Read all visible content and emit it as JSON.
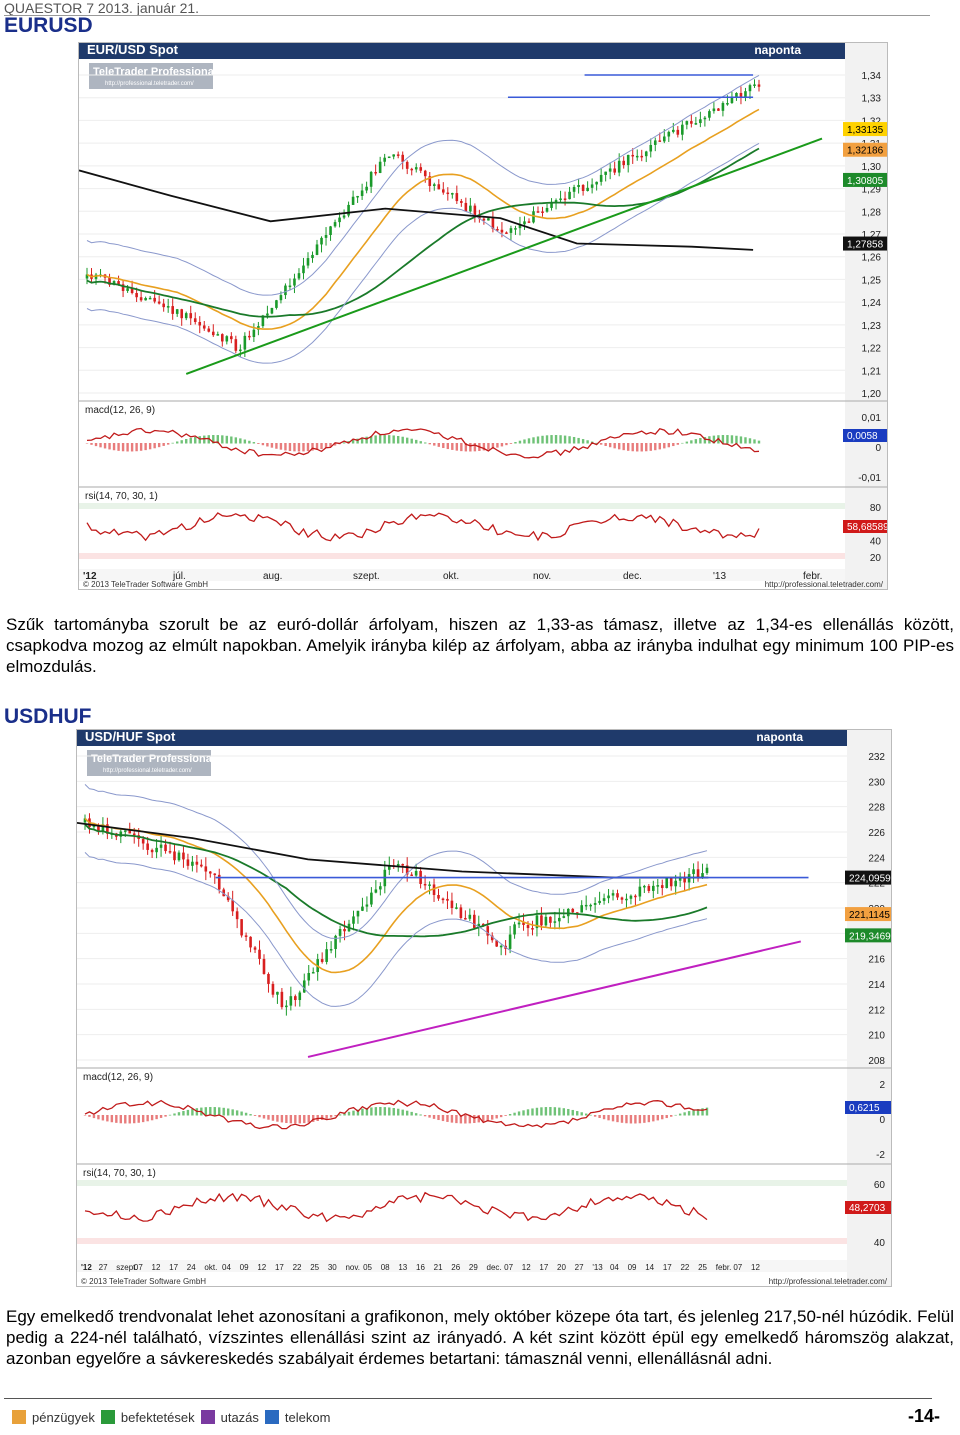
{
  "header": {
    "text": "QUAESTOR 7   2013. január 21."
  },
  "eurusd": {
    "title": "EURUSD",
    "chart": {
      "instrument": "EUR/USD Spot",
      "period": "naponta",
      "logo": "TeleTrader Professional",
      "logo_url": "http://professional.teletrader.com/",
      "price_ticks": [
        "1,34",
        "1,33",
        "1,32",
        "1,31",
        "1,30",
        "1,29",
        "1,28",
        "1,27",
        "1,26",
        "1,25",
        "1,24",
        "1,23",
        "1,22",
        "1,21",
        "1,20"
      ],
      "price_tags": [
        {
          "label": "1,33135",
          "color": "#ffd200",
          "text_color": "#000"
        },
        {
          "label": "1,32186",
          "color": "#f2a040",
          "text_color": "#000"
        },
        {
          "label": "1,30805",
          "color": "#1d8a2a",
          "text_color": "#fff"
        },
        {
          "label": "1,27858",
          "color": "#111111",
          "text_color": "#fff"
        }
      ],
      "macd_label": "macd(12, 26, 9)",
      "macd_ticks": [
        "0,01",
        "0",
        "-0,01"
      ],
      "macd_tag": "0,0058",
      "rsi_label": "rsi(14, 70, 30, 1)",
      "rsi_ticks": [
        "80",
        "60",
        "40",
        "20"
      ],
      "rsi_tag": "58,68589",
      "date_labels": [
        "'12",
        "júl.",
        "aug.",
        "szept.",
        "okt.",
        "nov.",
        "dec.",
        "'13",
        "febr."
      ],
      "copyright": "© 2013 TeleTrader Software GmbH",
      "url": "http://professional.teletrader.com/"
    },
    "text": "Szűk tartományba szorult be az euró-dollár árfolyam, hiszen az 1,33-as támasz, illetve az 1,34-es ellenállás között, csapkodva mozog az elmúlt napokban. Amelyik irányba kilép az árfolyam, abba az irányba indulhat egy minimum 100 PIP-es elmozdulás."
  },
  "usdhuf": {
    "title": "USDHUF",
    "chart": {
      "instrument": "USD/HUF Spot",
      "period": "naponta",
      "logo": "TeleTrader Professional",
      "logo_url": "http://professional.teletrader.com/",
      "price_ticks": [
        "232",
        "230",
        "228",
        "226",
        "224",
        "222",
        "220",
        "218",
        "216",
        "214",
        "212",
        "210",
        "208"
      ],
      "price_tags": [
        {
          "label": "224,0959",
          "color": "#111111",
          "text_color": "#fff"
        },
        {
          "label": "221,1145",
          "color": "#f2a040",
          "text_color": "#000"
        },
        {
          "label": "219,3469",
          "color": "#1d8a2a",
          "text_color": "#fff"
        }
      ],
      "macd_label": "macd(12, 26, 9)",
      "macd_ticks": [
        "2",
        "0",
        "-2"
      ],
      "macd_tag": "0,6215",
      "rsi_label": "rsi(14, 70, 30, 1)",
      "rsi_ticks": [
        "60",
        "40"
      ],
      "rsi_tag": "48,2703",
      "date_labels": [
        "'12",
        "27",
        "szept.",
        "07",
        "12",
        "17",
        "24",
        "okt.",
        "04",
        "09",
        "12",
        "17",
        "22",
        "25",
        "30",
        "nov.",
        "05",
        "08",
        "13",
        "16",
        "21",
        "26",
        "29",
        "dec.",
        "07",
        "12",
        "17",
        "20",
        "27",
        "'13",
        "04",
        "09",
        "14",
        "17",
        "22",
        "25",
        "febr.",
        "07",
        "12"
      ],
      "copyright": "© 2013 TeleTrader Software GmbH",
      "url": "http://professional.teletrader.com/"
    },
    "text": "Egy emelkedő trendvonalat lehet azonosítani a grafikonon, mely október közepe óta tart, és jelenleg 217,50-nél húzódik. Felül pedig a 224-nél található, vízszintes ellenállási szint az irányadó. A két szint között épül egy emelkedő háromszög alakzat, azonban egyelőre a sávkereskedés szabályait érdemes betartani: támasznál venni, ellenállásnál adni."
  },
  "footer": {
    "items": [
      "pénzügyek",
      "befektetések",
      "utazás",
      "telekom"
    ],
    "page_number": "-14-"
  }
}
